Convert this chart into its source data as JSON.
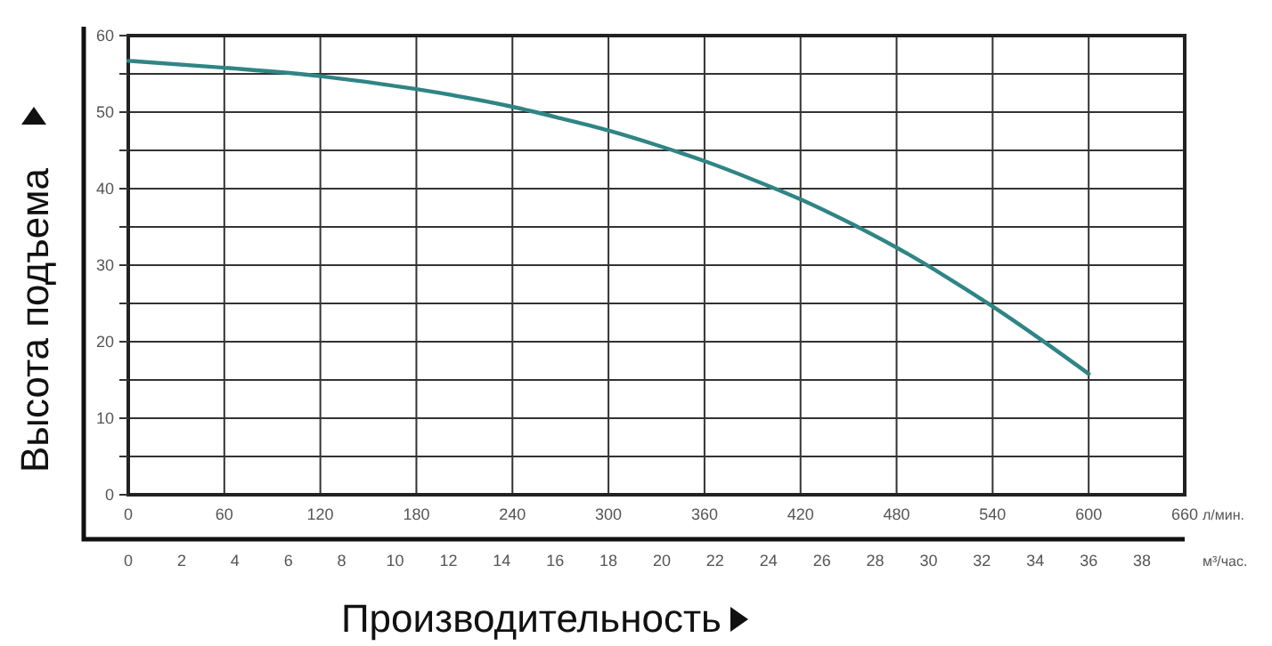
{
  "chart_data": {
    "type": "line",
    "xlabel": "Производительность",
    "ylabel": "Высота подъема",
    "x": [
      0,
      60,
      120,
      180,
      240,
      270,
      300,
      330,
      360,
      390,
      420,
      450,
      480,
      510,
      540,
      570,
      600
    ],
    "series": [
      {
        "color": "#2f8584",
        "values": [
          56.7,
          55.8,
          54.7,
          53,
          50.7,
          49.2,
          47.6,
          45.7,
          43.6,
          41.2,
          38.6,
          35.6,
          32.3,
          28.6,
          24.6,
          20.3,
          15.8
        ]
      }
    ],
    "xlim": [
      0,
      660
    ],
    "xticks": [
      0,
      60,
      120,
      180,
      240,
      300,
      360,
      420,
      480,
      540,
      600,
      660
    ],
    "x2lim": [
      0,
      39.6
    ],
    "x2ticks": [
      0,
      2,
      4,
      6,
      8,
      10,
      12,
      14,
      16,
      18,
      20,
      22,
      24,
      26,
      28,
      30,
      32,
      34,
      36,
      38
    ],
    "ylim": [
      0,
      60
    ],
    "yticks": [
      0,
      {
        "value": 5,
        "label": null
      },
      10,
      {
        "value": 15,
        "label": null
      },
      20,
      {
        "value": 25,
        "label": null
      },
      30,
      {
        "value": 35,
        "label": null
      },
      40,
      {
        "value": 45,
        "label": null
      },
      50,
      {
        "value": 55,
        "label": null
      },
      60
    ],
    "annotations": [
      "л/мин.",
      "м³/час."
    ],
    "grid": true,
    "marker": "none",
    "line_style": "solid"
  }
}
